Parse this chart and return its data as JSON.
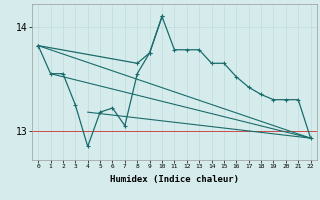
{
  "xlabel": "Humidex (Indice chaleur)",
  "background_color": "#d6ecec",
  "grid_color": "#b8d8d8",
  "line_color": "#1a6b6b",
  "x_values": [
    0,
    1,
    2,
    3,
    4,
    5,
    6,
    7,
    8,
    9,
    10,
    11,
    12,
    13,
    14,
    15,
    16,
    17,
    18,
    19,
    20,
    21,
    22
  ],
  "ylim": [
    12.72,
    14.22
  ],
  "yticks": [
    13,
    14
  ],
  "xlim": [
    -0.5,
    22.5
  ],
  "trend1_x": [
    0,
    22
  ],
  "trend1_y": [
    13.82,
    12.93
  ],
  "trend2_x": [
    1,
    22
  ],
  "trend2_y": [
    13.55,
    12.93
  ],
  "trend3_x": [
    4,
    22
  ],
  "trend3_y": [
    13.18,
    12.93
  ],
  "main_x": [
    0,
    8,
    9,
    10,
    11,
    12,
    13,
    14,
    15,
    16,
    17,
    18,
    19,
    20,
    21,
    22
  ],
  "main_y": [
    13.82,
    13.65,
    13.75,
    14.1,
    13.78,
    13.78,
    13.78,
    13.65,
    13.65,
    13.52,
    13.42,
    13.35,
    13.3,
    13.3,
    13.3,
    12.93
  ],
  "zz_x": [
    0,
    1,
    2,
    3,
    4,
    5,
    6,
    7,
    8,
    9,
    10
  ],
  "zz_y": [
    13.82,
    13.55,
    13.55,
    13.25,
    12.85,
    13.18,
    13.22,
    13.05,
    13.55,
    13.75,
    14.1
  ]
}
